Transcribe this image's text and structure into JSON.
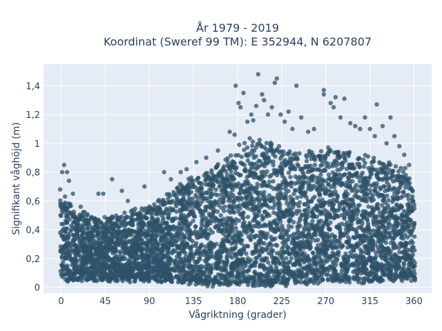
{
  "chart_data": {
    "type": "scatter",
    "title_line1": "År 1979 - 2019",
    "title_line2": "Koordinat (Sweref 99 TM): E 352944, N 6207807",
    "xlabel": "Vågriktning (grader)",
    "ylabel": "Signifikant våghöjd (m)",
    "xlim": [
      -18,
      378
    ],
    "ylim": [
      -0.04,
      1.55
    ],
    "xticks": [
      0,
      45,
      90,
      135,
      180,
      225,
      270,
      315,
      360
    ],
    "xtick_labels": [
      "0",
      "45",
      "90",
      "135",
      "180",
      "225",
      "270",
      "315",
      "360"
    ],
    "yticks": [
      0,
      0.2,
      0.4,
      0.6,
      0.8,
      1.0,
      1.2,
      1.4
    ],
    "ytick_labels": [
      "0",
      "0,2",
      "0,4",
      "0,6",
      "0,8",
      "1",
      "1,2",
      "1,4"
    ],
    "grid": true,
    "marker_color": "#2e5168",
    "plot_bg": "#e5ecf6",
    "envelope": {
      "x": [
        0,
        5,
        10,
        20,
        30,
        45,
        60,
        75,
        90,
        105,
        120,
        135,
        150,
        165,
        175,
        180,
        190,
        200,
        210,
        225,
        240,
        255,
        270,
        285,
        300,
        315,
        330,
        345,
        355,
        360
      ],
      "y_max": [
        0.6,
        0.62,
        0.57,
        0.54,
        0.5,
        0.48,
        0.5,
        0.54,
        0.56,
        0.62,
        0.7,
        0.77,
        0.82,
        0.88,
        0.95,
        0.98,
        1.02,
        1.04,
        1.02,
        0.97,
        0.95,
        0.93,
        0.96,
        0.95,
        0.92,
        0.9,
        0.87,
        0.84,
        0.8,
        0.65
      ],
      "y_min": [
        0.05,
        0.05,
        0.05,
        0.05,
        0.05,
        0.05,
        0.05,
        0.05,
        0.05,
        0.05,
        0.04,
        0.03,
        0.02,
        0.02,
        0.02,
        0.02,
        0.02,
        0.02,
        0.02,
        0.02,
        0.03,
        0.03,
        0.04,
        0.04,
        0.04,
        0.04,
        0.05,
        0.05,
        0.05,
        0.05
      ]
    },
    "outliers": [
      [
        1,
        0.8
      ],
      [
        3,
        0.85
      ],
      [
        6,
        0.8
      ],
      [
        8,
        0.74
      ],
      [
        -1,
        0.68
      ],
      [
        4,
        0.63
      ],
      [
        12,
        0.65
      ],
      [
        20,
        0.56
      ],
      [
        38,
        0.65
      ],
      [
        43,
        0.65
      ],
      [
        52,
        0.75
      ],
      [
        62,
        0.67
      ],
      [
        68,
        0.6
      ],
      [
        85,
        0.7
      ],
      [
        105,
        0.8
      ],
      [
        112,
        0.75
      ],
      [
        122,
        0.8
      ],
      [
        128,
        0.82
      ],
      [
        138,
        0.87
      ],
      [
        148,
        0.9
      ],
      [
        160,
        0.95
      ],
      [
        172,
        1.08
      ],
      [
        177,
        1.06
      ],
      [
        178,
        1.4
      ],
      [
        181,
        1.28
      ],
      [
        183,
        1.25
      ],
      [
        186,
        1.35
      ],
      [
        190,
        1.15
      ],
      [
        194,
        1.2
      ],
      [
        196,
        1.16
      ],
      [
        199,
        1.26
      ],
      [
        201,
        1.48
      ],
      [
        205,
        1.34
      ],
      [
        207,
        1.3
      ],
      [
        211,
        1.2
      ],
      [
        215,
        1.25
      ],
      [
        218,
        1.42
      ],
      [
        220,
        1.45
      ],
      [
        224,
        1.2
      ],
      [
        228,
        1.15
      ],
      [
        232,
        1.22
      ],
      [
        236,
        1.1
      ],
      [
        240,
        1.4
      ],
      [
        245,
        1.18
      ],
      [
        252,
        1.08
      ],
      [
        258,
        1.1
      ],
      [
        268,
        1.37
      ],
      [
        268,
        1.34
      ],
      [
        275,
        1.28
      ],
      [
        278,
        1.25
      ],
      [
        280,
        1.32
      ],
      [
        285,
        1.18
      ],
      [
        289,
        1.31
      ],
      [
        295,
        1.14
      ],
      [
        300,
        1.12
      ],
      [
        305,
        1.1
      ],
      [
        310,
        1.18
      ],
      [
        315,
        1.1
      ],
      [
        320,
        1.05
      ],
      [
        322,
        1.27
      ],
      [
        328,
        1.12
      ],
      [
        332,
        1.0
      ],
      [
        336,
        1.18
      ],
      [
        340,
        1.05
      ],
      [
        345,
        0.98
      ],
      [
        350,
        0.92
      ],
      [
        355,
        0.85
      ]
    ]
  }
}
